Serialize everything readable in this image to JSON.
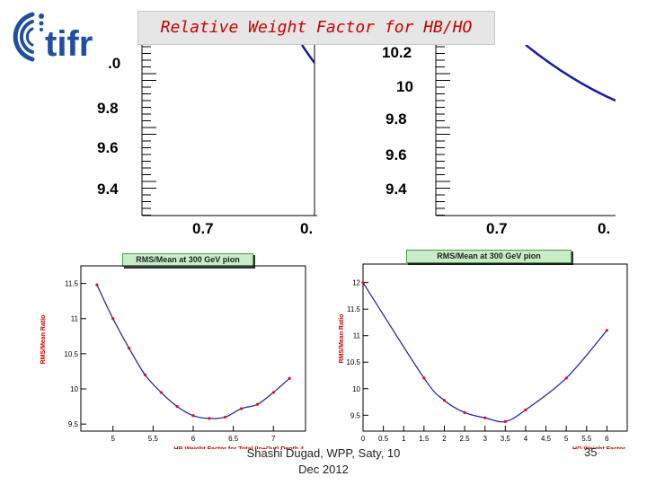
{
  "slide": {
    "title": "Relative Weight Factor for HB/HO",
    "footer_line1": "Shashi Dugad, WPP, Saty, 10",
    "footer_line2": "Dec 2012",
    "slide_number": "35",
    "logo_text": "tifr"
  },
  "colors": {
    "title_red": "#cc0000",
    "curve_blue": "#1a1aa8",
    "point_red": "#e01010",
    "logo_blue": "#1f4fa0"
  },
  "top_left_fragment": {
    "yticks": [
      ".0",
      "9.8",
      "9.6",
      "9.4"
    ],
    "xticks": [
      "0.7",
      "0."
    ]
  },
  "top_right_fragment": {
    "yticks": [
      "10.2",
      "10",
      "9.8",
      "9.6",
      "9.4"
    ],
    "xticks": [
      "0.7",
      "0."
    ]
  },
  "chart_data": [
    {
      "type": "scatter",
      "title": "RMS/Mean at 300 GeV pion",
      "xlabel": "HB Weight Factor for Total (In+Out) Depth 4",
      "ylabel": "RMS/Mean Ratio",
      "xlim": [
        4.6,
        7.4
      ],
      "ylim": [
        9.4,
        11.75
      ],
      "xticks": [
        5,
        5.5,
        6,
        6.5,
        7
      ],
      "yticks": [
        9.5,
        10,
        10.5,
        11,
        11.5
      ],
      "x": [
        4.8,
        5.0,
        5.2,
        5.4,
        5.6,
        5.8,
        6.0,
        6.2,
        6.4,
        6.6,
        6.8,
        7.0,
        7.2
      ],
      "y": [
        11.48,
        11.0,
        10.58,
        10.2,
        9.95,
        9.75,
        9.62,
        9.58,
        9.6,
        9.72,
        9.78,
        9.95,
        10.15
      ]
    },
    {
      "type": "scatter",
      "title": "RMS/Mean at 300 GeV pion",
      "xlabel": "HO Weight Factor",
      "ylabel": "RMS/Mean Ratio",
      "xlim": [
        0,
        6.5
      ],
      "ylim": [
        9.2,
        12.35
      ],
      "xticks": [
        0,
        0.5,
        1,
        1.5,
        2,
        2.5,
        3,
        3.5,
        4,
        4.5,
        5,
        5.5,
        6
      ],
      "yticks": [
        9.5,
        10,
        10.5,
        11,
        11.5,
        12
      ],
      "x": [
        0,
        1.5,
        2,
        2.5,
        3,
        3.5,
        4,
        5,
        6
      ],
      "y": [
        12.0,
        10.2,
        9.78,
        9.55,
        9.45,
        9.38,
        9.6,
        10.2,
        11.1
      ]
    }
  ]
}
